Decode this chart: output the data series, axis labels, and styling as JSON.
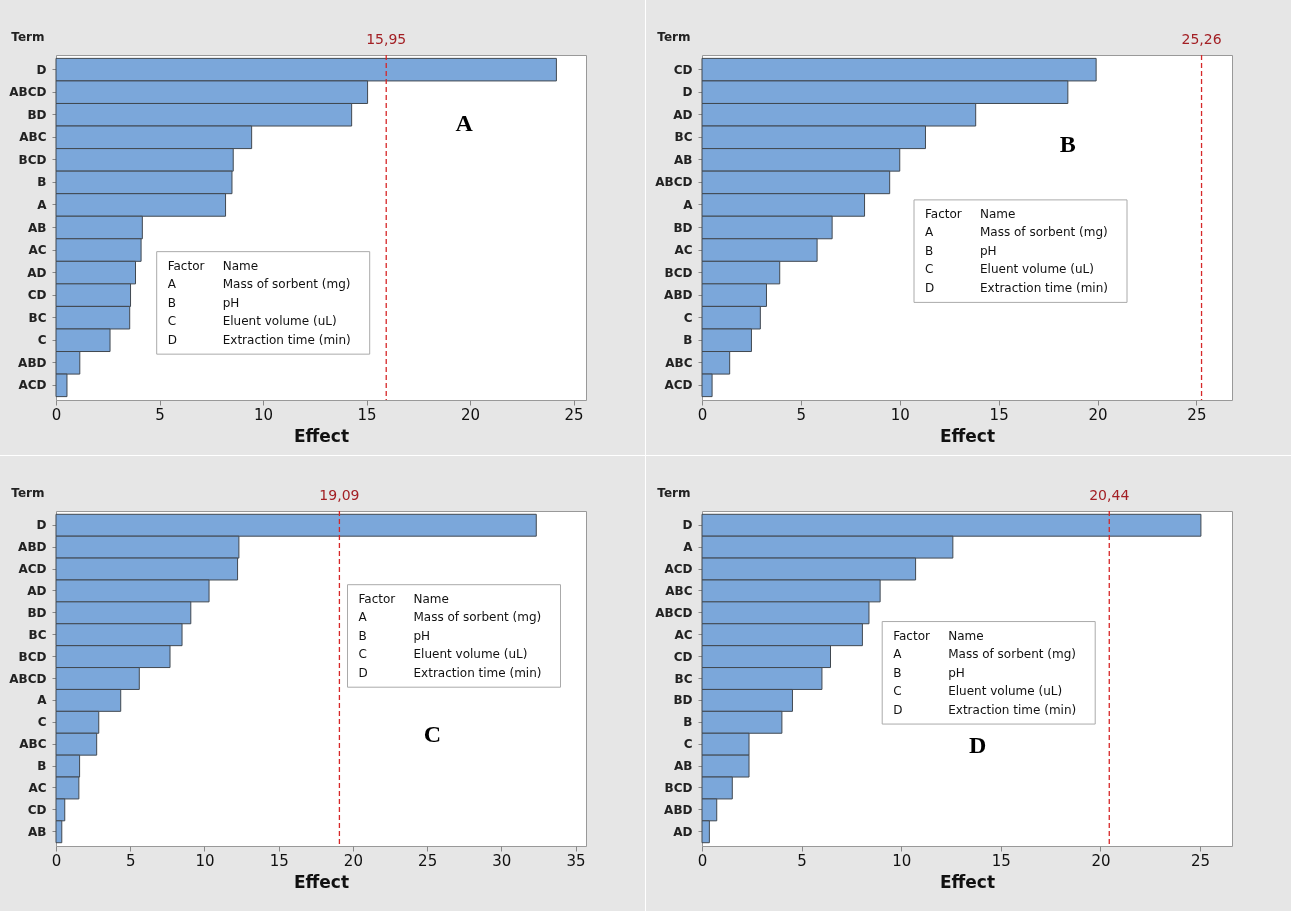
{
  "chart_data": [
    {
      "type": "bar",
      "orientation": "horizontal",
      "ylabel": "Term",
      "xlabel": "Effect",
      "color": "#7ba7da",
      "grid": false,
      "categories": [
        "D",
        "ABCD",
        "BD",
        "ABC",
        "BCD",
        "B",
        "A",
        "AB",
        "AC",
        "AD",
        "CD",
        "BC",
        "C",
        "ABD",
        "ACD"
      ],
      "values": [
        24.17,
        15.05,
        14.28,
        9.45,
        8.56,
        8.5,
        8.19,
        4.17,
        4.11,
        3.84,
        3.6,
        3.56,
        2.61,
        1.15,
        0.53
      ],
      "xlim": [
        0,
        25.6
      ],
      "xticks": [
        0,
        5,
        10,
        15,
        20,
        25
      ],
      "ref_lines": [
        {
          "axis": "x",
          "value": 15.95,
          "label": "15,95",
          "color": "#d62728",
          "line_style": "dashed"
        }
      ],
      "annotations": [
        "A",
        "Factor",
        "Name",
        "A",
        "Mass of sorbent (mg)",
        "B",
        "pH",
        "C",
        "Eluent volume (uL)",
        "D",
        "Extraction time (min)"
      ]
    },
    {
      "type": "bar",
      "orientation": "horizontal",
      "ylabel": "Term",
      "xlabel": "Effect",
      "color": "#7ba7da",
      "grid": false,
      "categories": [
        "CD",
        "D",
        "AD",
        "BC",
        "AB",
        "ABCD",
        "A",
        "BD",
        "AC",
        "BCD",
        "ABD",
        "C",
        "B",
        "ABC",
        "ACD"
      ],
      "values": [
        19.93,
        18.5,
        13.84,
        11.3,
        10.0,
        9.49,
        8.22,
        6.58,
        5.82,
        3.93,
        3.26,
        2.95,
        2.5,
        1.4,
        0.51
      ],
      "xlim": [
        0,
        26.8
      ],
      "xticks": [
        0,
        5,
        10,
        15,
        20,
        25
      ],
      "ref_lines": [
        {
          "axis": "x",
          "value": 25.26,
          "label": "25,26",
          "color": "#d62728",
          "line_style": "dashed"
        }
      ],
      "annotations": [
        "B",
        "Factor",
        "Name",
        "A",
        "Mass of sorbent (mg)",
        "B",
        "pH",
        "C",
        "Eluent volume (uL)",
        "D",
        "Extraction time (min)"
      ]
    },
    {
      "type": "bar",
      "orientation": "horizontal",
      "ylabel": "Term",
      "xlabel": "Effect",
      "color": "#7ba7da",
      "grid": false,
      "categories": [
        "D",
        "ABD",
        "ACD",
        "AD",
        "BD",
        "BC",
        "BCD",
        "ABCD",
        "A",
        "C",
        "ABC",
        "B",
        "AC",
        "CD",
        "AB"
      ],
      "values": [
        32.35,
        12.32,
        12.23,
        10.31,
        9.08,
        8.49,
        7.68,
        5.61,
        4.36,
        2.88,
        2.74,
        1.59,
        1.54,
        0.59,
        0.39
      ],
      "xlim": [
        0,
        35.7
      ],
      "xticks": [
        0,
        5,
        10,
        15,
        20,
        25,
        30,
        35
      ],
      "ref_lines": [
        {
          "axis": "x",
          "value": 19.09,
          "label": "19,09",
          "color": "#d62728",
          "line_style": "dashed"
        }
      ],
      "annotations": [
        "C",
        "Factor",
        "Name",
        "A",
        "Mass of sorbent (mg)",
        "B",
        "pH",
        "C",
        "Eluent volume (uL)",
        "D",
        "Extraction time (min)"
      ]
    },
    {
      "type": "bar",
      "orientation": "horizontal",
      "ylabel": "Term",
      "xlabel": "Effect",
      "color": "#7ba7da",
      "grid": false,
      "categories": [
        "D",
        "A",
        "ACD",
        "ABC",
        "ABCD",
        "AC",
        "CD",
        "BC",
        "BD",
        "B",
        "C",
        "AB",
        "BCD",
        "ABD",
        "AD"
      ],
      "values": [
        25.04,
        12.59,
        10.72,
        8.94,
        8.38,
        8.05,
        6.45,
        6.02,
        4.54,
        4.01,
        2.36,
        2.36,
        1.52,
        0.74,
        0.37
      ],
      "xlim": [
        0,
        26.6
      ],
      "xticks": [
        0,
        5,
        10,
        15,
        20,
        25
      ],
      "ref_lines": [
        {
          "axis": "x",
          "value": 20.44,
          "label": "20,44",
          "color": "#d62728",
          "line_style": "dashed"
        }
      ],
      "annotations": [
        "D",
        "Factor",
        "Name",
        "A",
        "Mass of sorbent (mg)",
        "B",
        "pH",
        "C",
        "Eluent volume (uL)",
        "D",
        "Extraction time (min)"
      ]
    }
  ]
}
